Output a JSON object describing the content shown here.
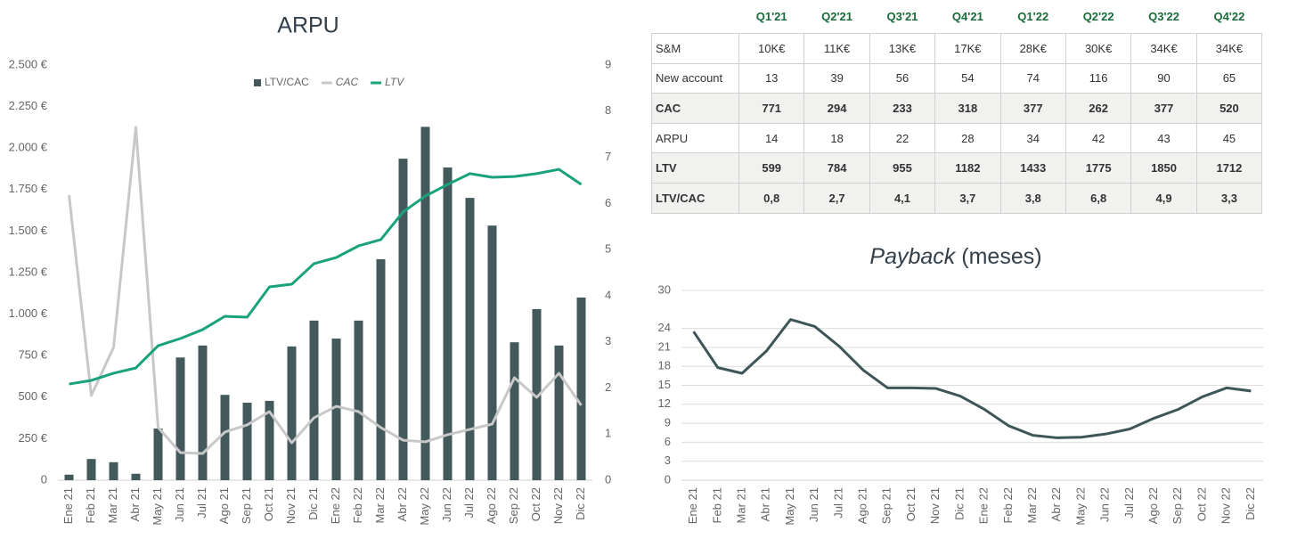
{
  "chart_data": [
    {
      "type": "combo",
      "title": "ARPU",
      "categories": [
        "Ene 21",
        "Feb 21",
        "Mar 21",
        "Abr 21",
        "May 21",
        "Jun 21",
        "Jul 21",
        "Ago 21",
        "Sep 21",
        "Oct 21",
        "Nov 21",
        "Dic 21",
        "Ene 22",
        "Feb 22",
        "Mar 22",
        "Abr 22",
        "May 22",
        "Jun 22",
        "Jul 22",
        "Ago 22",
        "Sep 22",
        "Oct 22",
        "Nov 22",
        "Dic 22"
      ],
      "series": [
        {
          "name": "LTV/CAC",
          "type": "bar",
          "axis": "y2",
          "color": "#43595c",
          "values": [
            0.12,
            0.46,
            0.39,
            0.14,
            1.12,
            2.66,
            2.92,
            1.85,
            1.68,
            1.72,
            2.9,
            3.46,
            3.07,
            3.46,
            4.79,
            6.97,
            7.66,
            6.78,
            6.12,
            5.52,
            2.99,
            3.71,
            2.92,
            3.96
          ]
        },
        {
          "name": "CAC",
          "type": "line",
          "color": "#c8c8c8",
          "values": [
            1717,
            510,
            800,
            2125,
            317,
            166,
            161,
            290,
            333,
            413,
            225,
            376,
            445,
            413,
            317,
            241,
            231,
            274,
            306,
            338,
            617,
            499,
            644,
            451
          ]
        },
        {
          "name": "LTV",
          "type": "line",
          "color": "#1aa37a",
          "values": [
            579,
            601,
            644,
            676,
            810,
            853,
            907,
            987,
            982,
            1164,
            1180,
            1304,
            1341,
            1411,
            1449,
            1615,
            1711,
            1781,
            1846,
            1824,
            1829,
            1846,
            1872,
            1781
          ]
        }
      ],
      "ylim": [
        0,
        2500
      ],
      "yticks": [
        0,
        {
          "value": 250,
          "label": "250 €"
        },
        {
          "value": 500,
          "label": "500 €"
        },
        {
          "value": 750,
          "label": "750 €"
        },
        {
          "value": 1000,
          "label": "1.000 €"
        },
        {
          "value": 1250,
          "label": "1.250 €"
        },
        {
          "value": 1500,
          "label": "1.500 €"
        },
        {
          "value": 1750,
          "label": "1.750 €"
        },
        {
          "value": 2000,
          "label": "2.000 €"
        },
        {
          "value": 2250,
          "label": "2.250 €"
        },
        {
          "value": 2500,
          "label": "2.500 €"
        }
      ],
      "y2lim": [
        0,
        9
      ],
      "y2ticks": [
        0,
        1,
        2,
        3,
        4,
        5,
        6,
        7,
        8,
        9
      ],
      "grid": false,
      "legend": "top"
    },
    {
      "type": "line",
      "title": "Payback",
      "title_unit": "(meses)",
      "categories": [
        "Ene 21",
        "Feb 21",
        "Mar 21",
        "Abr 21",
        "May 21",
        "Jun 21",
        "Jul 21",
        "Ago 21",
        "Sep 21",
        "Oct 21",
        "Nov 21",
        "Dic 21",
        "Ene 22",
        "Feb 22",
        "Mar 22",
        "Abr 22",
        "May 22",
        "Jun 22",
        "Jul 22",
        "Ago 22",
        "Sep 22",
        "Oct 22",
        "Nov 22",
        "Dic 22"
      ],
      "series": [
        {
          "name": "Payback",
          "color": "#3f5659",
          "values": [
            23.5,
            17.8,
            16.9,
            20.4,
            25.4,
            24.3,
            21.2,
            17.4,
            14.6,
            14.6,
            14.5,
            13.3,
            11.2,
            8.6,
            7.1,
            6.7,
            6.8,
            7.3,
            8.1,
            9.8,
            11.2,
            13.2,
            14.6,
            14.1
          ]
        }
      ],
      "ylim": [
        0,
        30
      ],
      "yticks": [
        0,
        3,
        6,
        9,
        12,
        15,
        18,
        21,
        24,
        30
      ],
      "grid": true
    }
  ],
  "table": {
    "header": [
      "Q1'21",
      "Q2'21",
      "Q3'21",
      "Q4'21",
      "Q1'22",
      "Q2'22",
      "Q3'22",
      "Q4'22"
    ],
    "rows": [
      {
        "label": "S&M",
        "bold": false,
        "cells": [
          "10K€",
          "11K€",
          "13K€",
          "17K€",
          "28K€",
          "30K€",
          "34K€",
          "34K€"
        ]
      },
      {
        "label": "New account",
        "bold": false,
        "cells": [
          "13",
          "39",
          "56",
          "54",
          "74",
          "116",
          "90",
          "65"
        ]
      },
      {
        "label": "CAC",
        "bold": true,
        "cells": [
          "771",
          "294",
          "233",
          "318",
          "377",
          "262",
          "377",
          "520"
        ]
      },
      {
        "label": "ARPU",
        "bold": false,
        "cells": [
          "14",
          "18",
          "22",
          "28",
          "34",
          "42",
          "43",
          "45"
        ]
      },
      {
        "label": "LTV",
        "bold": true,
        "cells": [
          "599",
          "784",
          "955",
          "1182",
          "1433",
          "1775",
          "1850",
          "1712"
        ]
      },
      {
        "label": "LTV/CAC",
        "bold": true,
        "cells": [
          "0,8",
          "2,7",
          "4,1",
          "3,7",
          "3,8",
          "6,8",
          "4,9",
          "3,3"
        ]
      }
    ]
  }
}
